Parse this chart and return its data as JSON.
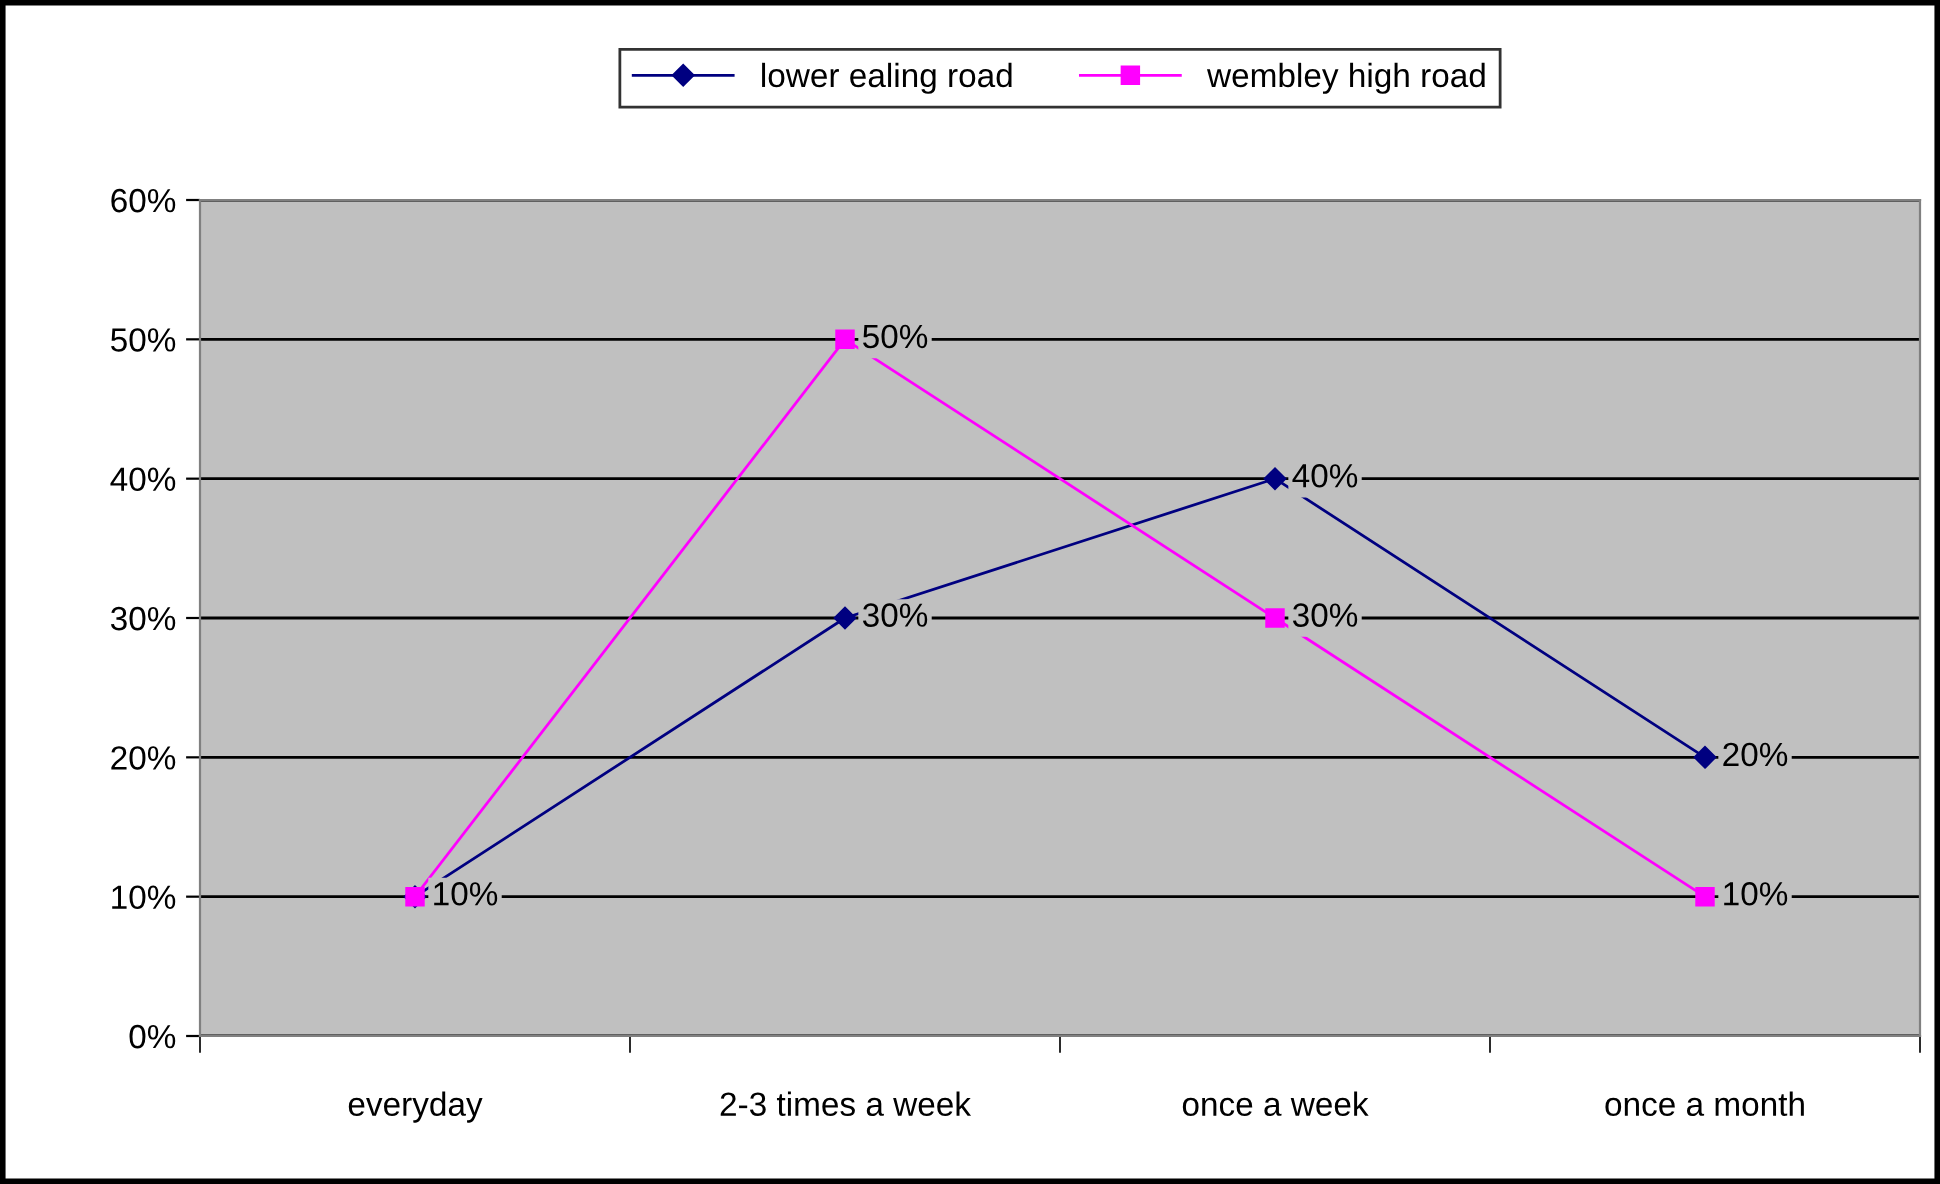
{
  "chart_data": {
    "type": "line",
    "categories": [
      "everyday",
      "2-3 times a week",
      "once a week",
      "once a month"
    ],
    "series": [
      {
        "name": "lower ealing road",
        "color": "#000080",
        "marker": "diamond",
        "values": [
          10,
          30,
          40,
          20
        ],
        "value_labels": [
          null,
          "30%",
          "40%",
          "20%"
        ]
      },
      {
        "name": "wembley high road",
        "color": "#ff00ff",
        "marker": "square",
        "values": [
          10,
          50,
          30,
          10
        ],
        "value_labels": [
          "10%",
          "50%",
          "30%",
          "10%"
        ]
      }
    ],
    "ylim": [
      0,
      60
    ],
    "yticks": [
      {
        "value": 0,
        "label": "0%"
      },
      {
        "value": 10,
        "label": "10%"
      },
      {
        "value": 20,
        "label": "20%"
      },
      {
        "value": 30,
        "label": "30%"
      },
      {
        "value": 40,
        "label": "40%"
      },
      {
        "value": 50,
        "label": "50%"
      },
      {
        "value": 60,
        "label": "60%"
      }
    ],
    "grid": "y",
    "legend": "top",
    "line_style": "solid"
  }
}
